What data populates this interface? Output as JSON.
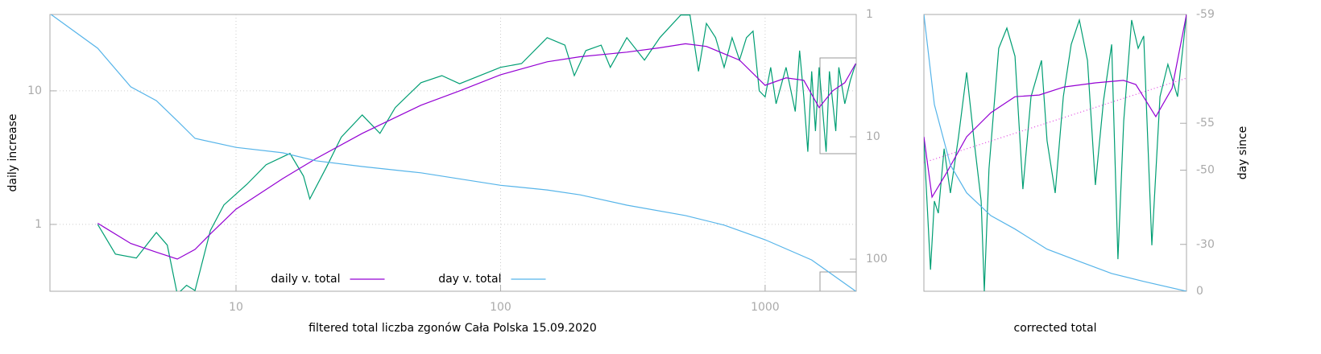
{
  "chart_data": [
    {
      "type": "line",
      "x_label": "filtered total liczba zgonów Cała Polska 15.09.2020",
      "y_label": "daily increase",
      "xscale": "log",
      "yscale": "log",
      "y2scale": "log",
      "xlim": [
        1.98,
        2210
      ],
      "xticks": [
        10,
        100,
        1000
      ],
      "ylim": [
        0.316,
        37.3
      ],
      "yticks": [
        1,
        10
      ],
      "y2lim": [
        183,
        1
      ],
      "y2ticks": [
        1,
        10,
        100
      ],
      "grid": true,
      "legend": "bottom center",
      "series": [
        {
          "color": "#009e73",
          "x": [
            3,
            3.5,
            4.2,
            5,
            5.5,
            6,
            6.5,
            7,
            8,
            9,
            11,
            13,
            16,
            18,
            19,
            22,
            25,
            30,
            35,
            40,
            50,
            60,
            70,
            100,
            120,
            150,
            175,
            190,
            210,
            240,
            260,
            300,
            350,
            400,
            480,
            520,
            560,
            600,
            650,
            700,
            750,
            800,
            850,
            900,
            950,
            1000,
            1050,
            1100,
            1200,
            1300,
            1350,
            1400,
            1450,
            1500,
            1550,
            1600,
            1700,
            1750,
            1850,
            1900,
            2000,
            2100,
            2200
          ],
          "values": [
            1.0,
            0.6,
            0.56,
            0.87,
            0.7,
            0.3,
            0.35,
            0.32,
            0.9,
            1.4,
            2,
            2.8,
            3.4,
            2.3,
            1.55,
            2.7,
            4.5,
            6.6,
            4.8,
            7.5,
            11.5,
            13,
            11.3,
            15,
            16,
            25,
            22,
            13,
            20,
            22,
            15,
            25,
            17,
            25,
            37,
            37,
            14,
            32,
            25,
            15,
            25,
            17,
            25,
            28,
            10,
            9,
            15,
            8,
            15,
            7,
            20,
            9,
            3.5,
            14,
            5,
            15,
            3.5,
            14,
            5,
            15,
            8,
            12,
            16
          ]
        },
        {
          "name": "daily v. total",
          "color": "#9400d3",
          "x": [
            3,
            4,
            5,
            6,
            7,
            8,
            10,
            15,
            20,
            30,
            50,
            70,
            100,
            150,
            200,
            300,
            400,
            500,
            600,
            800,
            1000,
            1200,
            1400,
            1600,
            1800,
            2000,
            2200
          ],
          "values": [
            1.02,
            0.72,
            0.62,
            0.55,
            0.65,
            0.85,
            1.3,
            2.2,
            3.1,
            4.8,
            7.8,
            10,
            13.2,
            16.5,
            18,
            19.5,
            21,
            22.5,
            21.5,
            17,
            11,
            12.5,
            12,
            7.5,
            10,
            11.5,
            16
          ]
        },
        {
          "name": "day v. total",
          "color": "#56b4e9",
          "axis": "y2",
          "x": [
            2,
            3,
            4,
            5,
            6,
            7,
            10,
            15,
            20,
            30,
            50,
            100,
            150,
            200,
            300,
            500,
            700,
            1000,
            1500,
            2200
          ],
          "values": [
            1,
            1.89,
            3.9,
            5.06,
            7.4,
            10.3,
            12.2,
            13.5,
            15.7,
            17.5,
            19.7,
            24.9,
            27.2,
            29.8,
            36.2,
            44,
            52.7,
            69.4,
            101.5,
            183
          ]
        }
      ]
    },
    {
      "type": "line",
      "x_label": "corrected total",
      "y2_label": "day since",
      "xscale": "linear",
      "yscale": "linear",
      "y2scale": "log",
      "xlim": [
        0,
        10
      ],
      "ylim": [
        0,
        10
      ],
      "y2lim": [
        60,
        1
      ],
      "y2ticks": [
        {
          "value": 1,
          "label": "-59"
        },
        {
          "value": 5,
          "label": "-55"
        },
        {
          "value": 10,
          "label": "-50"
        },
        {
          "value": 30,
          "label": "-30"
        },
        {
          "value": 60,
          "label": "0"
        }
      ],
      "grid": false,
      "series": [
        {
          "color": "#009e73",
          "x": [
            0,
            0.25,
            0.4,
            0.55,
            0.77,
            1.01,
            1.32,
            1.63,
            1.93,
            2.18,
            2.3,
            2.48,
            2.85,
            3.16,
            3.47,
            3.77,
            4.08,
            4.48,
            4.69,
            5,
            5.31,
            5.61,
            5.92,
            6.23,
            6.53,
            6.84,
            7.15,
            7.39,
            7.61,
            7.91,
            8.16,
            8.37,
            8.68,
            8.99,
            9.29,
            9.66,
            10
          ],
          "values": [
            5.44,
            0.78,
            3.26,
            2.82,
            5.15,
            3.55,
            5.58,
            7.91,
            5.29,
            3.26,
            0,
            4.42,
            8.78,
            9.51,
            8.49,
            3.69,
            7.03,
            8.34,
            5.44,
            3.55,
            7.03,
            8.92,
            9.8,
            8.34,
            3.84,
            6.89,
            8.92,
            1.16,
            6.16,
            9.8,
            8.78,
            9.22,
            1.66,
            7.03,
            8.2,
            7.03,
            10
          ]
        },
        {
          "color": "#e040e0",
          "style": "dotted",
          "x": [
            0,
            10
          ],
          "values": [
            4.65,
            7.7
          ]
        },
        {
          "color": "#9400d3",
          "x": [
            0,
            0.31,
            0.86,
            1.63,
            2.55,
            3.47,
            4.39,
            5.34,
            6.53,
            7.6,
            8.07,
            8.83,
            9.45,
            10
          ],
          "values": [
            5.58,
            3.4,
            4.27,
            5.58,
            6.45,
            7.03,
            7.09,
            7.38,
            7.53,
            7.62,
            7.47,
            6.31,
            7.33,
            10
          ]
        },
        {
          "color": "#56b4e9",
          "axis": "y2",
          "x": [
            0,
            0.4,
            1.01,
            1.63,
            2.55,
            3.47,
            4.69,
            5.92,
            7.15,
            8.37,
            10
          ],
          "values": [
            1,
            3.79,
            9.27,
            14,
            19.6,
            23.9,
            32.2,
            38.6,
            46.1,
            51.9,
            60
          ]
        }
      ]
    }
  ]
}
